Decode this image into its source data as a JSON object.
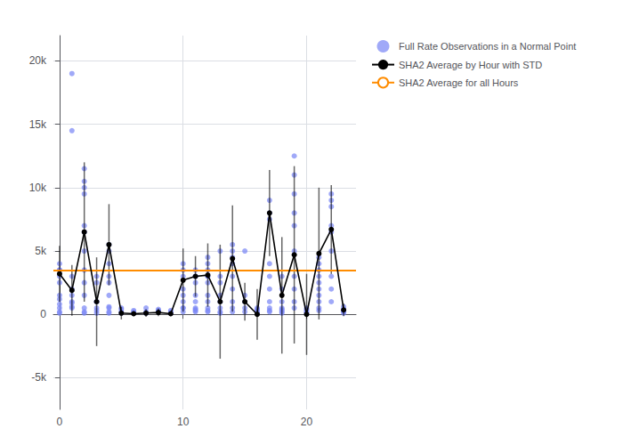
{
  "chart_data": {
    "type": "scatter",
    "xlim": [
      -0.5,
      24
    ],
    "ylim": [
      -7500,
      22000
    ],
    "xticks": [
      0,
      10,
      20
    ],
    "yticks": [
      {
        "value": -5000,
        "label": "-5k"
      },
      0,
      {
        "value": 5000,
        "label": "5k"
      },
      {
        "value": 10000,
        "label": "10k"
      },
      {
        "value": 15000,
        "label": "15k"
      },
      {
        "value": 20000,
        "label": "20k"
      }
    ],
    "grid": true,
    "legend": "right",
    "series": [
      {
        "name": "Full Rate Observations in a Normal Point",
        "type": "scatter",
        "color": "#7b88f5",
        "marker": "circle",
        "x": [
          0,
          0,
          0,
          0,
          0,
          0,
          0,
          0,
          0,
          0,
          0,
          1,
          1,
          1,
          1,
          1,
          1,
          1,
          1,
          1,
          2,
          2,
          2,
          2,
          2,
          2,
          2,
          2,
          2,
          2,
          2,
          2,
          2,
          3,
          3,
          3,
          3,
          3,
          3,
          3,
          4,
          4,
          4,
          4,
          4,
          4,
          4,
          4,
          4,
          4,
          5,
          5,
          5,
          5,
          6,
          6,
          6,
          7,
          7,
          7,
          8,
          8,
          8,
          9,
          9,
          9,
          10,
          10,
          10,
          10,
          10,
          10,
          10,
          10,
          10,
          11,
          11,
          11,
          11,
          11,
          11,
          11,
          11,
          11,
          11,
          12,
          12,
          12,
          12,
          12,
          12,
          12,
          12,
          12,
          12,
          12,
          13,
          13,
          13,
          13,
          13,
          13,
          13,
          13,
          14,
          14,
          14,
          14,
          14,
          14,
          14,
          14,
          14,
          15,
          15,
          15,
          15,
          15,
          16,
          16,
          16,
          16,
          16,
          17,
          17,
          17,
          17,
          17,
          17,
          17,
          17,
          17,
          17,
          18,
          18,
          18,
          18,
          18,
          18,
          18,
          18,
          19,
          19,
          19,
          19,
          19,
          19,
          19,
          19,
          19,
          19,
          20,
          20,
          20,
          20,
          20,
          21,
          21,
          21,
          21,
          21,
          21,
          21,
          21,
          21,
          21,
          22,
          22,
          22,
          22,
          22,
          22,
          22,
          22,
          22,
          23,
          23,
          23,
          23,
          23
        ],
        "values": [
          3000,
          800,
          1200,
          4000,
          2500,
          3500,
          1500,
          500,
          200,
          100,
          3500,
          19000,
          14500,
          2000,
          1500,
          3000,
          1000,
          500,
          600,
          900,
          6500,
          10000,
          10500,
          11500,
          9500,
          7000,
          5000,
          3500,
          2500,
          1500,
          500,
          200,
          100,
          1000,
          3000,
          2500,
          500,
          1000,
          300,
          100,
          5500,
          5000,
          4000,
          3000,
          2500,
          1500,
          500,
          200,
          100,
          600,
          500,
          200,
          100,
          400,
          300,
          100,
          200,
          200,
          100,
          500,
          300,
          200,
          400,
          100,
          200,
          300,
          4000,
          3500,
          3000,
          2000,
          1500,
          1000,
          500,
          200,
          500,
          3000,
          2500,
          3500,
          3000,
          1500,
          1000,
          500,
          200,
          300,
          400,
          4000,
          3500,
          3000,
          4500,
          3000,
          2500,
          1500,
          1000,
          500,
          200,
          300,
          5000,
          3000,
          2500,
          1500,
          1000,
          500,
          200,
          100,
          4000,
          4500,
          5000,
          5500,
          3000,
          2000,
          1000,
          500,
          200,
          5000,
          1500,
          1000,
          500,
          200,
          500,
          400,
          300,
          200,
          100,
          8000,
          7500,
          9000,
          4000,
          3000,
          2000,
          1000,
          500,
          200,
          300,
          3000,
          2000,
          1000,
          500,
          200,
          100,
          300,
          400,
          12500,
          11000,
          9500,
          8000,
          7000,
          5000,
          3000,
          2000,
          1000,
          500,
          500,
          400,
          300,
          200,
          100,
          4500,
          4000,
          3500,
          3000,
          2500,
          2000,
          1500,
          1000,
          500,
          300,
          9500,
          8500,
          9000,
          7000,
          6500,
          5000,
          3000,
          2000,
          1000,
          600,
          400,
          200,
          100,
          300
        ]
      },
      {
        "name": "SHA2 Average by Hour with STD",
        "type": "line",
        "color": "black",
        "marker": "circle",
        "x": [
          0,
          1,
          2,
          3,
          4,
          5,
          6,
          7,
          8,
          9,
          10,
          11,
          12,
          13,
          14,
          15,
          16,
          17,
          18,
          19,
          20,
          21,
          22,
          23
        ],
        "values": [
          3200,
          1900,
          6500,
          1000,
          5500,
          100,
          50,
          100,
          150,
          50,
          2700,
          3000,
          3100,
          1000,
          4400,
          1000,
          0,
          8000,
          1500,
          4700,
          0,
          4800,
          6700,
          350
        ],
        "error": [
          2200,
          2000,
          5500,
          3500,
          3200,
          500,
          200,
          300,
          300,
          200,
          2500,
          1600,
          2500,
          4500,
          4200,
          1500,
          2000,
          3400,
          4600,
          7000,
          3200,
          5200,
          3500,
          500
        ]
      },
      {
        "name": "SHA2 Average for all Hours",
        "type": "hline",
        "color": "#ff8c00",
        "values": [
          3500
        ]
      }
    ]
  }
}
